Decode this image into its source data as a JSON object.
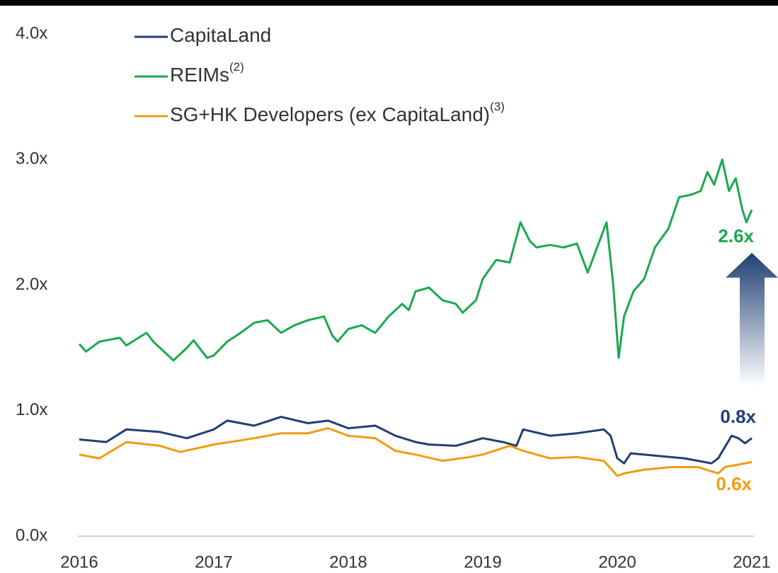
{
  "chart_data": {
    "type": "line",
    "xlim": [
      2016,
      2021
    ],
    "xticks": [
      2016,
      2017,
      2018,
      2019,
      2020,
      2021
    ],
    "ylim": [
      0,
      4
    ],
    "yticks": [
      {
        "value": 0,
        "label": "0.0x"
      },
      {
        "value": 1,
        "label": "1.0x"
      },
      {
        "value": 2,
        "label": "2.0x"
      },
      {
        "value": 3,
        "label": "3.0x"
      },
      {
        "value": 4,
        "label": "4.0x"
      }
    ],
    "series": [
      {
        "name": "CapitaLand",
        "color": "#1f3f73",
        "end_label": "0.8x",
        "x": [
          2016.0,
          2016.2,
          2016.35,
          2016.6,
          2016.8,
          2017.0,
          2017.1,
          2017.3,
          2017.5,
          2017.7,
          2017.85,
          2018.0,
          2018.2,
          2018.35,
          2018.5,
          2018.6,
          2018.8,
          2019.0,
          2019.15,
          2019.25,
          2019.3,
          2019.5,
          2019.7,
          2019.9,
          2019.95,
          2020.0,
          2020.05,
          2020.1,
          2020.3,
          2020.5,
          2020.6,
          2020.7,
          2020.75,
          2020.85,
          2020.9,
          2020.95,
          2021.0
        ],
        "values": [
          0.77,
          0.75,
          0.85,
          0.83,
          0.78,
          0.85,
          0.92,
          0.88,
          0.95,
          0.9,
          0.92,
          0.86,
          0.88,
          0.8,
          0.75,
          0.73,
          0.72,
          0.78,
          0.75,
          0.72,
          0.85,
          0.8,
          0.82,
          0.85,
          0.8,
          0.62,
          0.58,
          0.66,
          0.64,
          0.62,
          0.6,
          0.58,
          0.62,
          0.8,
          0.78,
          0.74,
          0.78
        ]
      },
      {
        "name": "REIMs",
        "note": "(2)",
        "color": "#1aa84e",
        "end_label": "2.6x",
        "x": [
          2016.0,
          2016.05,
          2016.15,
          2016.3,
          2016.35,
          2016.5,
          2016.55,
          2016.65,
          2016.7,
          2016.8,
          2016.85,
          2016.95,
          2017.0,
          2017.1,
          2017.2,
          2017.3,
          2017.4,
          2017.5,
          2017.6,
          2017.7,
          2017.82,
          2017.88,
          2017.92,
          2018.0,
          2018.1,
          2018.2,
          2018.3,
          2018.4,
          2018.45,
          2018.5,
          2018.6,
          2018.7,
          2018.8,
          2018.85,
          2018.95,
          2019.0,
          2019.1,
          2019.2,
          2019.28,
          2019.35,
          2019.4,
          2019.5,
          2019.6,
          2019.7,
          2019.78,
          2019.85,
          2019.92,
          2019.97,
          2020.01,
          2020.05,
          2020.12,
          2020.2,
          2020.28,
          2020.38,
          2020.46,
          2020.55,
          2020.62,
          2020.67,
          2020.72,
          2020.78,
          2020.83,
          2020.88,
          2020.93,
          2020.96,
          2021.0
        ],
        "values": [
          1.53,
          1.47,
          1.55,
          1.58,
          1.52,
          1.62,
          1.55,
          1.45,
          1.4,
          1.5,
          1.56,
          1.42,
          1.44,
          1.55,
          1.62,
          1.7,
          1.72,
          1.62,
          1.68,
          1.72,
          1.75,
          1.6,
          1.55,
          1.65,
          1.68,
          1.62,
          1.75,
          1.85,
          1.8,
          1.95,
          1.98,
          1.88,
          1.85,
          1.78,
          1.88,
          2.05,
          2.2,
          2.18,
          2.5,
          2.35,
          2.3,
          2.32,
          2.3,
          2.33,
          2.1,
          2.3,
          2.5,
          2.0,
          1.42,
          1.75,
          1.95,
          2.05,
          2.3,
          2.45,
          2.7,
          2.72,
          2.75,
          2.9,
          2.8,
          3.0,
          2.75,
          2.85,
          2.6,
          2.5,
          2.6
        ]
      },
      {
        "name": "SG+HK Developers (ex CapitaLand)",
        "note": "(3)",
        "color": "#f29b11",
        "end_label": "0.6x",
        "x": [
          2016.0,
          2016.15,
          2016.35,
          2016.6,
          2016.75,
          2017.0,
          2017.3,
          2017.5,
          2017.7,
          2017.85,
          2018.0,
          2018.2,
          2018.35,
          2018.5,
          2018.7,
          2018.9,
          2019.0,
          2019.2,
          2019.3,
          2019.5,
          2019.7,
          2019.9,
          2020.0,
          2020.05,
          2020.2,
          2020.4,
          2020.6,
          2020.75,
          2020.8,
          2021.0
        ],
        "values": [
          0.65,
          0.62,
          0.75,
          0.72,
          0.67,
          0.73,
          0.78,
          0.82,
          0.82,
          0.86,
          0.8,
          0.78,
          0.68,
          0.65,
          0.6,
          0.63,
          0.65,
          0.72,
          0.68,
          0.62,
          0.63,
          0.6,
          0.48,
          0.5,
          0.53,
          0.55,
          0.55,
          0.5,
          0.55,
          0.59
        ]
      }
    ]
  }
}
